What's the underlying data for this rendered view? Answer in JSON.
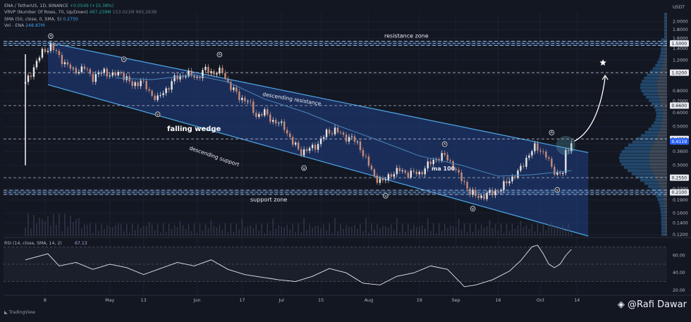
{
  "legend": {
    "symbol_line": "ENA / TetherUS, 1D, BINANCE",
    "symbol_change": "+0.0549 (+15.38%)",
    "vrvp_line": "VRVP (Number Of Rows, 70, Up/Down)",
    "vrvp_value": "497.239M",
    "vrvp_muted": "153.021M 995.263B",
    "sma_line": "SMA (50, close, 0, SMA, 5)",
    "sma_value": "0.2750",
    "vol_line": "Vol - ENA",
    "vol_value": "248.87M"
  },
  "rsi_legend": {
    "label": "RSI (14, close, SMA, 14, 2)",
    "value": "67.13"
  },
  "branding": {
    "logo": "TradingView",
    "watermark": "@Rafi Dawar"
  },
  "colors": {
    "up": "#26a69a",
    "down": "#ef9a9a",
    "up_candle": "#e8e8e8",
    "down_candle": "#c98b77",
    "wedge_fill": "#1f3c7a",
    "wedge_line": "#4fa8e8",
    "ma": "#4a86b8",
    "background": "#131722"
  },
  "chart_data": {
    "type": "candlestick",
    "title": "",
    "price_axis": {
      "unit": "USDT",
      "scale": "log",
      "range": [
        0.118,
        2.25
      ],
      "ticks": [
        "2.0000",
        "1.8000",
        "1.6000",
        "1.4000",
        "1.2000",
        "1.0000",
        "0.8000",
        "0.7000",
        "0.6000",
        "0.5000",
        "0.4000",
        "0.3600",
        "0.3000",
        "0.2500",
        "0.2200",
        "0.1900",
        "0.1600",
        "0.1400",
        "0.1200"
      ],
      "highlighted": [
        {
          "label": "1.5000",
          "value": 1.5,
          "color": "#e6e8ee",
          "text": "#131722"
        },
        {
          "label": "1.0200",
          "value": 1.02,
          "color": "#e6e8ee",
          "text": "#131722"
        },
        {
          "label": "0.6600",
          "value": 0.66,
          "color": "#e6e8ee",
          "text": "#131722"
        },
        {
          "label": "0.4250",
          "value": 0.425,
          "color": "#e6e8ee",
          "text": "#131722"
        },
        {
          "label": "0.4119",
          "value": 0.4119,
          "color": "#2962ff",
          "text": "#ffffff"
        },
        {
          "label": "0.2550",
          "value": 0.255,
          "color": "#e6e8ee",
          "text": "#131722"
        },
        {
          "label": "0.2100",
          "value": 0.21,
          "color": "#e6e8ee",
          "text": "#131722"
        }
      ]
    },
    "time_axis": {
      "labels": [
        {
          "text": "8",
          "day": 7
        },
        {
          "text": "May",
          "day": 30
        },
        {
          "text": "13",
          "day": 42
        },
        {
          "text": "Jun",
          "day": 61
        },
        {
          "text": "17",
          "day": 77
        },
        {
          "text": "Jul",
          "day": 91
        },
        {
          "text": "15",
          "day": 105
        },
        {
          "text": "Aug",
          "day": 122
        },
        {
          "text": "19",
          "day": 140
        },
        {
          "text": "Sep",
          "day": 153
        },
        {
          "text": "16",
          "day": 168
        },
        {
          "text": "Oct",
          "day": 183
        },
        {
          "text": "14",
          "day": 196
        }
      ],
      "last_day": 194
    },
    "horizontal_levels": [
      1.5,
      1.02,
      0.66,
      0.425,
      0.255,
      0.21
    ],
    "zones": [
      {
        "label": "resistance zone",
        "value": 1.5
      },
      {
        "label": "support zone",
        "value": 0.21
      }
    ],
    "wedge": {
      "upper": [
        [
          8,
          1.52
        ],
        [
          200,
          0.355
        ]
      ],
      "lower": [
        [
          8,
          0.87
        ],
        [
          200,
          0.118
        ]
      ],
      "upper_label": "descending resistance",
      "lower_label": "descending support",
      "pattern_label": "falling wedge"
    },
    "ma_label": "ma 100",
    "touch_points": [
      {
        "day": 9,
        "price": 1.52,
        "dir": "up"
      },
      {
        "day": 35,
        "price": 1.12,
        "dir": "up"
      },
      {
        "day": 47,
        "price": 0.64,
        "dir": "down"
      },
      {
        "day": 69,
        "price": 1.19,
        "dir": "up"
      },
      {
        "day": 99,
        "price": 0.315,
        "dir": "down"
      },
      {
        "day": 128,
        "price": 0.218,
        "dir": "down"
      },
      {
        "day": 149,
        "price": 0.365,
        "dir": "up"
      },
      {
        "day": 159,
        "price": 0.184,
        "dir": "down"
      },
      {
        "day": 187,
        "price": 0.425,
        "dir": "up"
      },
      {
        "day": 189,
        "price": 0.236,
        "dir": "down"
      }
    ],
    "breakout": {
      "day": 192,
      "price": 0.39,
      "target_day": 206,
      "target_price": 1.02
    },
    "series_points": [
      [
        0,
        0.88
      ],
      [
        4,
        1.18
      ],
      [
        6,
        1.33
      ],
      [
        9,
        1.46
      ],
      [
        11,
        1.32
      ],
      [
        14,
        1.16
      ],
      [
        17,
        1.04
      ],
      [
        21,
        1.08
      ],
      [
        24,
        0.96
      ],
      [
        28,
        1.04
      ],
      [
        31,
        0.98
      ],
      [
        34,
        1.02
      ],
      [
        38,
        0.86
      ],
      [
        41,
        0.92
      ],
      [
        44,
        0.79
      ],
      [
        47,
        0.72
      ],
      [
        50,
        0.82
      ],
      [
        53,
        0.94
      ],
      [
        57,
        1.0
      ],
      [
        61,
        0.96
      ],
      [
        64,
        1.06
      ],
      [
        67,
        1.02
      ],
      [
        70,
        1.03
      ],
      [
        73,
        0.84
      ],
      [
        76,
        0.74
      ],
      [
        79,
        0.7
      ],
      [
        82,
        0.58
      ],
      [
        85,
        0.6
      ],
      [
        88,
        0.54
      ],
      [
        92,
        0.5
      ],
      [
        95,
        0.4
      ],
      [
        98,
        0.36
      ],
      [
        101,
        0.37
      ],
      [
        104,
        0.4
      ],
      [
        107,
        0.46
      ],
      [
        110,
        0.48
      ],
      [
        113,
        0.44
      ],
      [
        116,
        0.43
      ],
      [
        119,
        0.38
      ],
      [
        122,
        0.3
      ],
      [
        124,
        0.26
      ],
      [
        127,
        0.24
      ],
      [
        130,
        0.27
      ],
      [
        133,
        0.28
      ],
      [
        136,
        0.27
      ],
      [
        140,
        0.27
      ],
      [
        143,
        0.3
      ],
      [
        146,
        0.33
      ],
      [
        149,
        0.34
      ],
      [
        152,
        0.3
      ],
      [
        154,
        0.26
      ],
      [
        156,
        0.24
      ],
      [
        158,
        0.21
      ],
      [
        160,
        0.2
      ],
      [
        163,
        0.2
      ],
      [
        166,
        0.21
      ],
      [
        169,
        0.22
      ],
      [
        172,
        0.25
      ],
      [
        175,
        0.27
      ],
      [
        178,
        0.33
      ],
      [
        181,
        0.38
      ],
      [
        183,
        0.37
      ],
      [
        185,
        0.34
      ],
      [
        187,
        0.29
      ],
      [
        189,
        0.27
      ],
      [
        191,
        0.27
      ],
      [
        192,
        0.35
      ],
      [
        194,
        0.41
      ]
    ],
    "ma_points": [
      [
        32,
        0.95
      ],
      [
        45,
        0.93
      ],
      [
        60,
        0.99
      ],
      [
        72,
        0.9
      ],
      [
        85,
        0.72
      ],
      [
        100,
        0.6
      ],
      [
        112,
        0.5
      ],
      [
        125,
        0.42
      ],
      [
        140,
        0.34
      ],
      [
        155,
        0.3
      ],
      [
        168,
        0.26
      ],
      [
        180,
        0.265
      ],
      [
        194,
        0.28
      ]
    ],
    "rsi": {
      "label": "RSI",
      "ticks": [
        60.0,
        40.0,
        20.0
      ],
      "bands": [
        70,
        50,
        30
      ],
      "range": [
        15,
        80
      ],
      "points": [
        [
          0,
          55
        ],
        [
          8,
          62
        ],
        [
          12,
          48
        ],
        [
          18,
          52
        ],
        [
          24,
          44
        ],
        [
          30,
          50
        ],
        [
          36,
          46
        ],
        [
          42,
          38
        ],
        [
          48,
          45
        ],
        [
          54,
          52
        ],
        [
          60,
          48
        ],
        [
          66,
          55
        ],
        [
          72,
          44
        ],
        [
          78,
          38
        ],
        [
          84,
          35
        ],
        [
          90,
          32
        ],
        [
          96,
          30
        ],
        [
          102,
          36
        ],
        [
          108,
          45
        ],
        [
          114,
          40
        ],
        [
          120,
          28
        ],
        [
          126,
          26
        ],
        [
          132,
          36
        ],
        [
          138,
          40
        ],
        [
          144,
          48
        ],
        [
          150,
          44
        ],
        [
          156,
          24
        ],
        [
          160,
          26
        ],
        [
          166,
          32
        ],
        [
          172,
          42
        ],
        [
          176,
          54
        ],
        [
          180,
          70
        ],
        [
          182,
          72
        ],
        [
          184,
          62
        ],
        [
          186,
          50
        ],
        [
          188,
          46
        ],
        [
          190,
          50
        ],
        [
          192,
          60
        ],
        [
          194,
          67
        ]
      ]
    }
  }
}
